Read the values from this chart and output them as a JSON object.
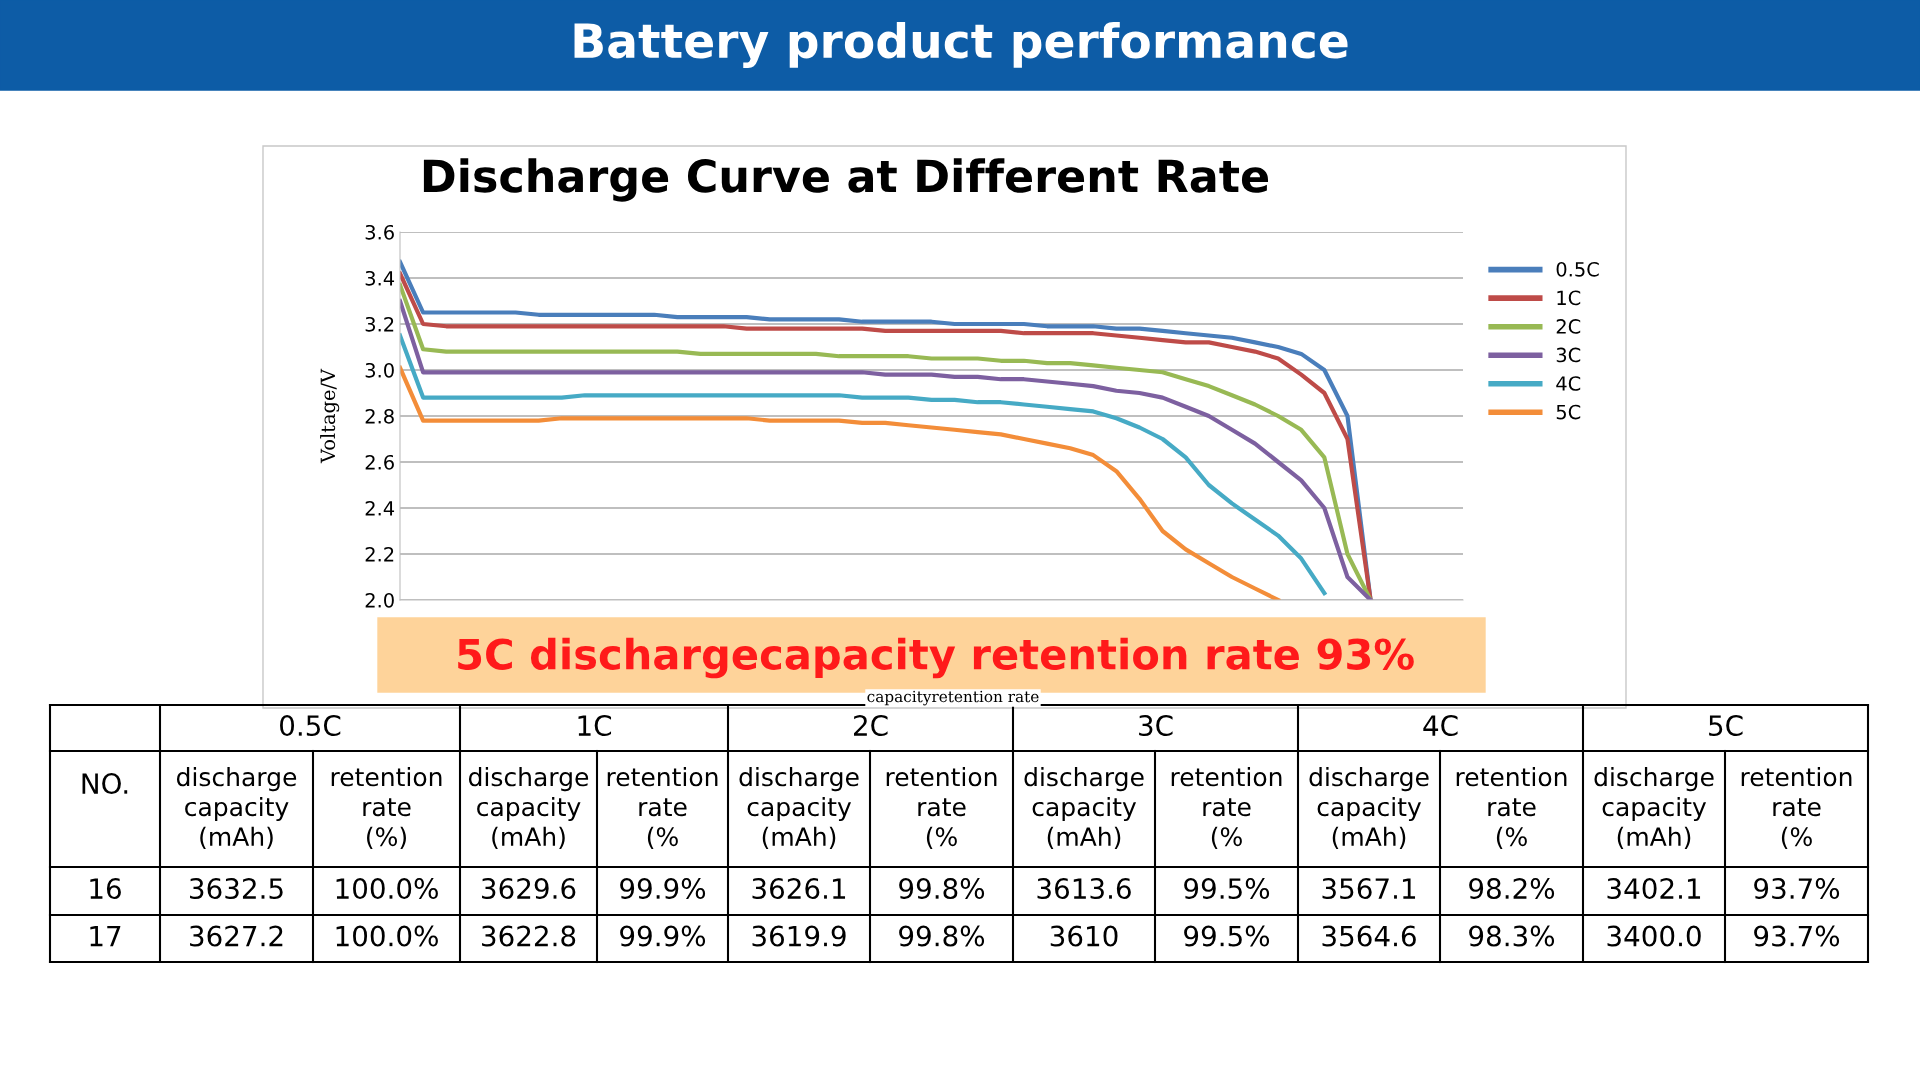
{
  "chart_data": {
    "type": "line",
    "title": "Discharge Curve at Different Rate",
    "subtitle": "Battery product performance",
    "ylabel": "Voltage/V",
    "categories": [
      null,
      null,
      null,
      null,
      null,
      null,
      null,
      null,
      null,
      null,
      null,
      null,
      null,
      null,
      null,
      null,
      null,
      null,
      null,
      null,
      null,
      null,
      null,
      null,
      null,
      null,
      null,
      null,
      null,
      null,
      null,
      null,
      null,
      null,
      null,
      null,
      null,
      null,
      null,
      null,
      null,
      null,
      null,
      null,
      null
    ],
    "ylim": [
      2.0,
      3.6
    ],
    "yticks": [
      {
        "value": 2.0,
        "label": "2.0"
      },
      {
        "value": 2.2,
        "label": "2.2"
      },
      {
        "value": 2.4,
        "label": "2.4"
      },
      {
        "value": 2.6,
        "label": "2.6"
      },
      {
        "value": 2.8,
        "label": "2.8"
      },
      {
        "value": 3.0,
        "label": "3.0"
      },
      {
        "value": 3.2,
        "label": "3.2"
      },
      {
        "value": 3.4,
        "label": "3.4"
      },
      {
        "value": 3.6,
        "label": "3.6"
      }
    ],
    "grid": "y",
    "legend": "right",
    "marker": "none",
    "line_style": "solid",
    "tick_labels": "y",
    "series": [
      {
        "name": "0.5C",
        "color": "#4a7ebb",
        "values": [
          3.47,
          3.25,
          3.25,
          3.25,
          3.25,
          3.25,
          3.24,
          3.24,
          3.24,
          3.24,
          3.24,
          3.24,
          3.23,
          3.23,
          3.23,
          3.23,
          3.22,
          3.22,
          3.22,
          3.22,
          3.21,
          3.21,
          3.21,
          3.21,
          3.2,
          3.2,
          3.2,
          3.2,
          3.19,
          3.19,
          3.19,
          3.18,
          3.18,
          3.17,
          3.16,
          3.15,
          3.14,
          3.12,
          3.1,
          3.07,
          3.0,
          2.8,
          2.0,
          null,
          null
        ]
      },
      {
        "name": "1C",
        "color": "#be4b48",
        "values": [
          3.42,
          3.2,
          3.19,
          3.19,
          3.19,
          3.19,
          3.19,
          3.19,
          3.19,
          3.19,
          3.19,
          3.19,
          3.19,
          3.19,
          3.19,
          3.18,
          3.18,
          3.18,
          3.18,
          3.18,
          3.18,
          3.17,
          3.17,
          3.17,
          3.17,
          3.17,
          3.17,
          3.16,
          3.16,
          3.16,
          3.16,
          3.15,
          3.14,
          3.13,
          3.12,
          3.12,
          3.1,
          3.08,
          3.05,
          2.98,
          2.9,
          2.7,
          2.0,
          null,
          null
        ]
      },
      {
        "name": "2C",
        "color": "#98b954",
        "values": [
          3.37,
          3.09,
          3.08,
          3.08,
          3.08,
          3.08,
          3.08,
          3.08,
          3.08,
          3.08,
          3.08,
          3.08,
          3.08,
          3.07,
          3.07,
          3.07,
          3.07,
          3.07,
          3.07,
          3.06,
          3.06,
          3.06,
          3.06,
          3.05,
          3.05,
          3.05,
          3.04,
          3.04,
          3.03,
          3.03,
          3.02,
          3.01,
          3.0,
          2.99,
          2.96,
          2.93,
          2.89,
          2.85,
          2.8,
          2.74,
          2.62,
          2.2,
          2.0,
          null,
          null
        ]
      },
      {
        "name": "3C",
        "color": "#7d60a0",
        "values": [
          3.3,
          2.99,
          2.99,
          2.99,
          2.99,
          2.99,
          2.99,
          2.99,
          2.99,
          2.99,
          2.99,
          2.99,
          2.99,
          2.99,
          2.99,
          2.99,
          2.99,
          2.99,
          2.99,
          2.99,
          2.99,
          2.98,
          2.98,
          2.98,
          2.97,
          2.97,
          2.96,
          2.96,
          2.95,
          2.94,
          2.93,
          2.91,
          2.9,
          2.88,
          2.84,
          2.8,
          2.74,
          2.68,
          2.6,
          2.52,
          2.4,
          2.1,
          2.0,
          null,
          null
        ]
      },
      {
        "name": "4C",
        "color": "#46aac5",
        "values": [
          3.15,
          2.88,
          2.88,
          2.88,
          2.88,
          2.88,
          2.88,
          2.88,
          2.89,
          2.89,
          2.89,
          2.89,
          2.89,
          2.89,
          2.89,
          2.89,
          2.89,
          2.89,
          2.89,
          2.89,
          2.88,
          2.88,
          2.88,
          2.87,
          2.87,
          2.86,
          2.86,
          2.85,
          2.84,
          2.83,
          2.82,
          2.79,
          2.75,
          2.7,
          2.62,
          2.5,
          2.42,
          2.35,
          2.28,
          2.18,
          2.03,
          null,
          null,
          null,
          null
        ]
      },
      {
        "name": "5C",
        "color": "#f38d39",
        "values": [
          3.01,
          2.78,
          2.78,
          2.78,
          2.78,
          2.78,
          2.78,
          2.79,
          2.79,
          2.79,
          2.79,
          2.79,
          2.79,
          2.79,
          2.79,
          2.79,
          2.78,
          2.78,
          2.78,
          2.78,
          2.77,
          2.77,
          2.76,
          2.75,
          2.74,
          2.73,
          2.72,
          2.7,
          2.68,
          2.66,
          2.63,
          2.56,
          2.44,
          2.3,
          2.22,
          2.16,
          2.1,
          2.05,
          2.0,
          null,
          null,
          null,
          null,
          null,
          null
        ]
      }
    ],
    "annotations": [
      "5C dischargecapacity retention rate 93%",
      "capacityretention rate",
      "NO.",
      "0.5C",
      "1C",
      "2C",
      "3C",
      "4C",
      "5C",
      "discharge capacity (mAh)",
      "retention rate (%)",
      "discharge capacity (mAh)",
      "retention rate (%",
      "discharge capacity (mAh)",
      "retention rate (%",
      "discharge capacity (mAh)",
      "retention rate (%",
      "discharge capacity (mAh)",
      "retention rate (%",
      "discharge capacity (mAh)",
      "retention rate (%",
      "16",
      "3632.5",
      "100.0%",
      "3629.6",
      "99.9%",
      "3626.1",
      "99.8%",
      "3613.6",
      "99.5%",
      "3567.1",
      "98.2%",
      "3402.1",
      "93.7%",
      "17",
      "3627.2",
      "100.0%",
      "3622.8",
      "99.9%",
      "3619.9",
      "99.8%",
      "3610",
      "99.5%",
      "3564.6",
      "98.3%",
      "3400.0",
      "93.7%"
    ]
  }
}
